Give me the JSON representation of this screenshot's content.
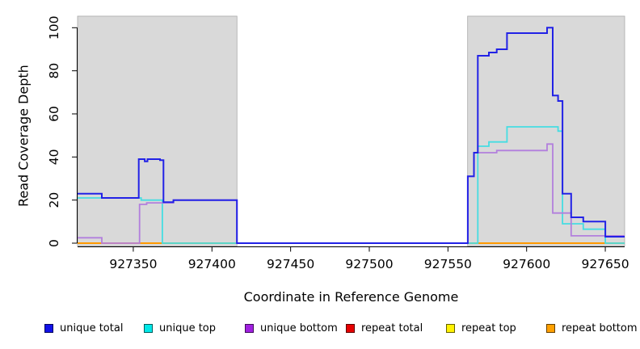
{
  "chart_data": {
    "type": "line",
    "step": true,
    "title": "",
    "xlabel": "Coordinate in Reference Genome",
    "ylabel": "Read Coverage Depth",
    "xlim": [
      927314.6,
      927662.3
    ],
    "ylim": [
      0,
      100
    ],
    "x_ticks": [
      927350,
      927400,
      927450,
      927500,
      927550,
      927600,
      927650
    ],
    "y_ticks": [
      0,
      20,
      40,
      60,
      80,
      100
    ],
    "grid": false,
    "legend_position": "bottom",
    "repeat_regions": [
      [
        927314.6,
        927415.9
      ],
      [
        927562.5,
        927662.3
      ]
    ],
    "region_fill": "#d9d9d9",
    "region_border": "#aaaaaa",
    "series": [
      {
        "name": "repeat total",
        "color": "#e60000",
        "line_width": 1.8,
        "segments": [
          [
            [
              927314.6,
              0
            ],
            [
              927415.9,
              0
            ]
          ],
          [
            [
              927562.5,
              0
            ],
            [
              927662.3,
              0
            ]
          ]
        ]
      },
      {
        "name": "repeat top",
        "color": "#fff200",
        "line_width": 1.8,
        "segments": [
          [
            [
              927314.6,
              0
            ],
            [
              927415.9,
              0
            ]
          ],
          [
            [
              927562.5,
              0
            ],
            [
              927662.3,
              0
            ]
          ]
        ]
      },
      {
        "name": "repeat bottom",
        "color": "#ff9900",
        "line_width": 2,
        "segments": [
          [
            [
              927314.6,
              0
            ],
            [
              927415.9,
              0
            ]
          ],
          [
            [
              927562.5,
              0
            ],
            [
              927662.3,
              0
            ]
          ]
        ]
      },
      {
        "name": "unique top",
        "color": "#45dde2",
        "line_width": 1.8,
        "segments": [
          [
            [
              927314.6,
              21
            ],
            [
              927355,
              20
            ],
            [
              927368.5,
              0
            ],
            [
              927569,
              45
            ],
            [
              927576,
              47
            ],
            [
              927587.5,
              54
            ],
            [
              927620,
              52
            ],
            [
              927622.8,
              9
            ],
            [
              927636,
              6.5
            ],
            [
              927650,
              0
            ],
            [
              927662.3,
              0
            ]
          ]
        ]
      },
      {
        "name": "unique bottom",
        "color": "#b27fdd",
        "line_width": 1.8,
        "segments": [
          [
            [
              927314.6,
              2.5
            ],
            [
              927330,
              0
            ],
            [
              927354,
              18
            ],
            [
              927358.5,
              18.7
            ],
            [
              927375.5,
              20
            ],
            [
              927415.9,
              0
            ],
            [
              927562.6,
              31
            ],
            [
              927566.5,
              42
            ],
            [
              927581,
              43
            ],
            [
              927613,
              46
            ],
            [
              927616.6,
              14
            ],
            [
              927628.3,
              3.4
            ],
            [
              927662.3,
              3.4
            ]
          ]
        ]
      },
      {
        "name": "unique total",
        "color": "#2222e6",
        "line_width": 2,
        "segments": [
          [
            [
              927314.6,
              23
            ],
            [
              927330,
              21
            ],
            [
              927353.5,
              39
            ],
            [
              927357.3,
              38
            ],
            [
              927359,
              39
            ],
            [
              927367,
              38.5
            ],
            [
              927369.2,
              19
            ],
            [
              927375.5,
              20
            ],
            [
              927415.9,
              0
            ],
            [
              927562.6,
              31
            ],
            [
              927566.5,
              42
            ],
            [
              927569,
              87
            ],
            [
              927576,
              88.5
            ],
            [
              927581,
              90
            ],
            [
              927587.5,
              97.5
            ],
            [
              927613,
              100
            ],
            [
              927616.6,
              68.5
            ],
            [
              927620,
              66
            ],
            [
              927622.8,
              23
            ],
            [
              927628.3,
              12
            ],
            [
              927636,
              10
            ],
            [
              927650,
              3
            ],
            [
              927662.3,
              3
            ]
          ]
        ]
      }
    ],
    "legend": [
      {
        "label": "unique total",
        "color": "#1111e8"
      },
      {
        "label": "unique top",
        "color": "#00e8e8"
      },
      {
        "label": "unique bottom",
        "color": "#a020e0"
      },
      {
        "label": "repeat total",
        "color": "#e60000"
      },
      {
        "label": "repeat top",
        "color": "#fff200"
      },
      {
        "label": "repeat bottom",
        "color": "#ffa000"
      }
    ]
  }
}
